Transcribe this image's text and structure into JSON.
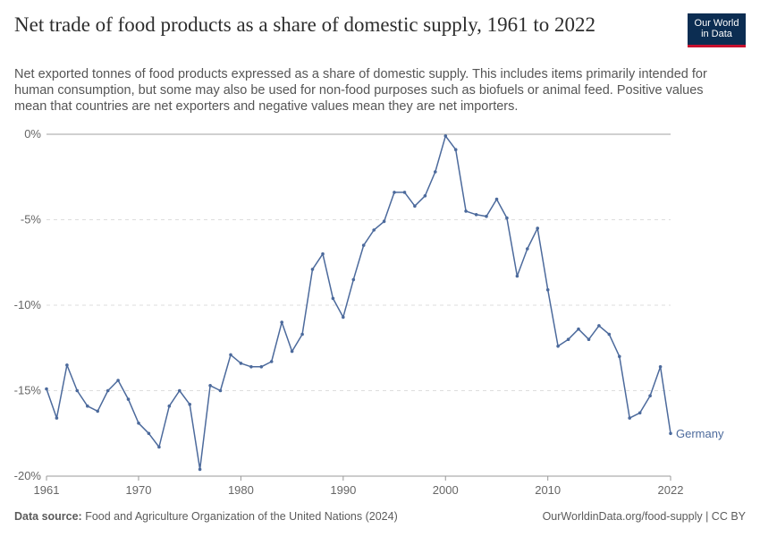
{
  "header": {
    "title": "Net trade of food products as a share of domestic supply, 1961 to 2022",
    "subtitle": "Net exported tonnes of food products expressed as a share of domestic supply. This includes items primarily intended for human consumption, but some may also be used for non-food purposes such as biofuels or animal feed. Positive values mean that countries are net exporters and negative values mean they are net importers."
  },
  "logo": {
    "line1": "Our World",
    "line2": "in Data",
    "bg_color": "#0c2d52",
    "accent_color": "#c8102e"
  },
  "footer": {
    "source_label": "Data source:",
    "source_text": "Food and Agriculture Organization of the United Nations (2024)",
    "right_text": "OurWorldinData.org/food-supply | CC BY"
  },
  "chart_data": {
    "type": "line",
    "xlim": [
      1961,
      2022
    ],
    "ylim": [
      -20,
      0
    ],
    "yticks": [
      0,
      -5,
      -10,
      -15,
      -20
    ],
    "ytick_labels": [
      "0%",
      "-5%",
      "-10%",
      "-15%",
      "-20%"
    ],
    "xticks": [
      1961,
      1970,
      1980,
      1990,
      2000,
      2010,
      2022
    ],
    "xtick_labels": [
      "1961",
      "1970",
      "1980",
      "1990",
      "2000",
      "2010",
      "2022"
    ],
    "grid": true,
    "line_color": "#4c6a9c",
    "series": [
      {
        "name": "Germany",
        "x": [
          1961,
          1962,
          1963,
          1964,
          1965,
          1966,
          1967,
          1968,
          1969,
          1970,
          1971,
          1972,
          1973,
          1974,
          1975,
          1976,
          1977,
          1978,
          1979,
          1980,
          1981,
          1982,
          1983,
          1984,
          1985,
          1986,
          1987,
          1988,
          1989,
          1990,
          1991,
          1992,
          1993,
          1994,
          1995,
          1996,
          1997,
          1998,
          1999,
          2000,
          2001,
          2002,
          2003,
          2004,
          2005,
          2006,
          2007,
          2008,
          2009,
          2010,
          2011,
          2012,
          2013,
          2014,
          2015,
          2016,
          2017,
          2018,
          2019,
          2020,
          2021,
          2022
        ],
        "values": [
          -14.9,
          -16.6,
          -13.5,
          -15.0,
          -15.9,
          -16.2,
          -15.0,
          -14.4,
          -15.5,
          -16.9,
          -17.5,
          -18.3,
          -15.9,
          -15.0,
          -15.8,
          -19.6,
          -14.7,
          -15.0,
          -12.9,
          -13.4,
          -13.6,
          -13.6,
          -13.3,
          -11.0,
          -12.7,
          -11.7,
          -7.9,
          -7.0,
          -9.6,
          -10.7,
          -8.5,
          -6.5,
          -5.6,
          -5.1,
          -3.4,
          -3.4,
          -4.2,
          -3.6,
          -2.2,
          -0.1,
          -0.9,
          -4.5,
          -4.7,
          -4.8,
          -3.8,
          -4.9,
          -8.3,
          -6.7,
          -5.5,
          -9.1,
          -12.4,
          -12.0,
          -11.4,
          -12.0,
          -11.2,
          -11.7,
          -13.0,
          -16.6,
          -16.3,
          -15.3,
          -13.6,
          -17.5
        ]
      }
    ]
  }
}
